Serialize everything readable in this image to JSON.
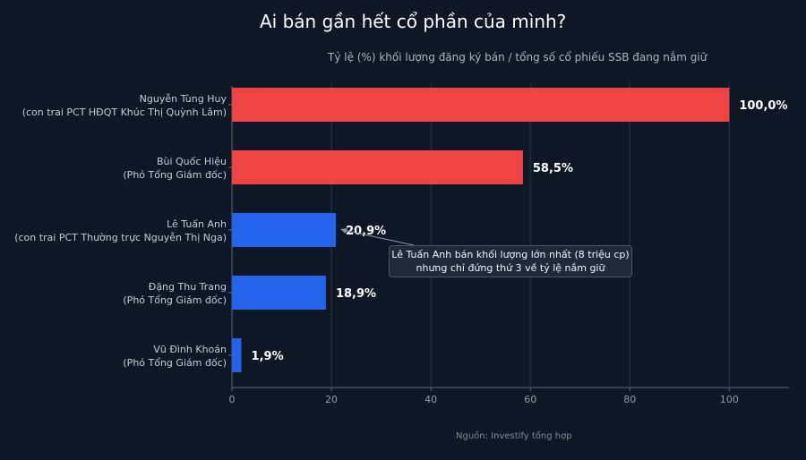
{
  "title": "Ai bán gần hết cổ phần của mình?",
  "subtitle": "Tỷ lệ (%) khối lượng đăng ký bán / tổng số cổ phiếu SSB đang nắm giữ",
  "source": "Nguồn: Investify tổng hợp",
  "annotation": {
    "line1": "Lê Tuấn Anh bán khối lượng lớn nhất (8 triệu cp)",
    "line2": "nhưng chỉ đứng thứ 3 về tỷ lệ nắm giữ"
  },
  "colors": {
    "background": "#0e1726",
    "red": "#ef4444",
    "blue": "#2563eb",
    "grid": "#283445",
    "text": "#c4ccd8"
  },
  "chart_data": {
    "type": "bar",
    "orientation": "horizontal",
    "categories": [
      {
        "name": "Nguyễn Tùng Huy",
        "role": "(con trai PCT HĐQT Khúc Thị Quỳnh Lâm)"
      },
      {
        "name": "Bùi Quốc Hiệu",
        "role": "(Phó Tổng Giám đốc)"
      },
      {
        "name": "Lê Tuấn Anh",
        "role": "(con trai PCT Thường trực Nguyễn Thị Nga)"
      },
      {
        "name": "Đặng Thu Trang",
        "role": "(Phó Tổng Giám đốc)"
      },
      {
        "name": "Vũ Đình Khoán",
        "role": "(Phó Tổng Giám đốc)"
      }
    ],
    "values": [
      100.0,
      58.5,
      20.9,
      18.9,
      1.9
    ],
    "value_labels": [
      "100,0%",
      "58,5%",
      "20,9%",
      "18,9%",
      "1,9%"
    ],
    "bar_colors": [
      "red",
      "red",
      "blue",
      "blue",
      "blue"
    ],
    "xlim": [
      0,
      112
    ],
    "xticks": [
      0,
      20,
      40,
      60,
      80,
      100
    ],
    "grid": true
  }
}
